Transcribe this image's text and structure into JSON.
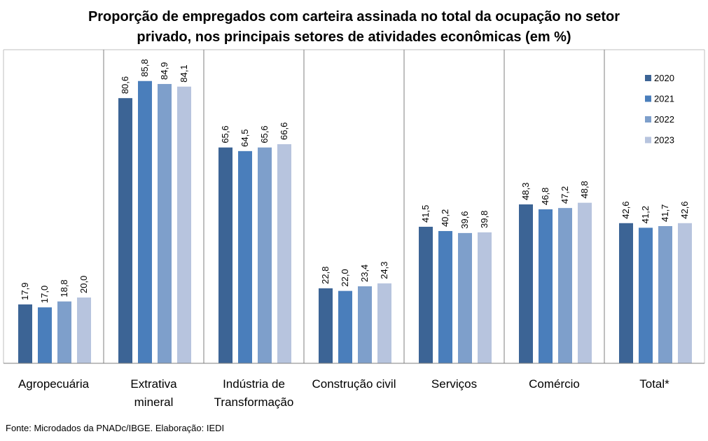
{
  "chart_data": {
    "type": "bar",
    "title_lines": [
      "Proporção de empregados com carteira assinada no total da ocupação no setor",
      "privado, nos principais setores de atividades econômicas (em %)"
    ],
    "categories": [
      [
        "Agropecuária"
      ],
      [
        "Extrativa",
        "mineral"
      ],
      [
        "Indústria de",
        "Transformação"
      ],
      [
        "Construção civil"
      ],
      [
        "Serviços"
      ],
      [
        "Comércio"
      ],
      [
        "Total*"
      ]
    ],
    "series": [
      {
        "name": "2020",
        "color": "#3C6495",
        "values": [
          17.9,
          80.6,
          65.6,
          22.8,
          41.5,
          48.3,
          42.6
        ],
        "labels": [
          "17,9",
          "80,6",
          "65,6",
          "22,8",
          "41,5",
          "48,3",
          "42,6"
        ]
      },
      {
        "name": "2021",
        "color": "#4A7EBB",
        "values": [
          17.0,
          85.8,
          64.5,
          22.0,
          40.2,
          46.8,
          41.2
        ],
        "labels": [
          "17,0",
          "85,8",
          "64,5",
          "22,0",
          "40,2",
          "46,8",
          "41,2"
        ]
      },
      {
        "name": "2022",
        "color": "#7E9FCB",
        "values": [
          18.8,
          84.9,
          65.6,
          23.4,
          39.6,
          47.2,
          41.7
        ],
        "labels": [
          "18,8",
          "84,9",
          "65,6",
          "23,4",
          "39,6",
          "47,2",
          "41,7"
        ]
      },
      {
        "name": "2023",
        "color": "#B7C4DE",
        "values": [
          20.0,
          84.1,
          66.6,
          24.3,
          39.8,
          48.8,
          42.6
        ],
        "labels": [
          "20,0",
          "84,1",
          "66,6",
          "24,3",
          "39,8",
          "48,8",
          "42,6"
        ]
      }
    ],
    "ylim": [
      0,
      100
    ],
    "grid": false,
    "legend": "top-right"
  },
  "footnote": "Fonte: Microdados da PNADc/IBGE. Elaboração: IEDI"
}
